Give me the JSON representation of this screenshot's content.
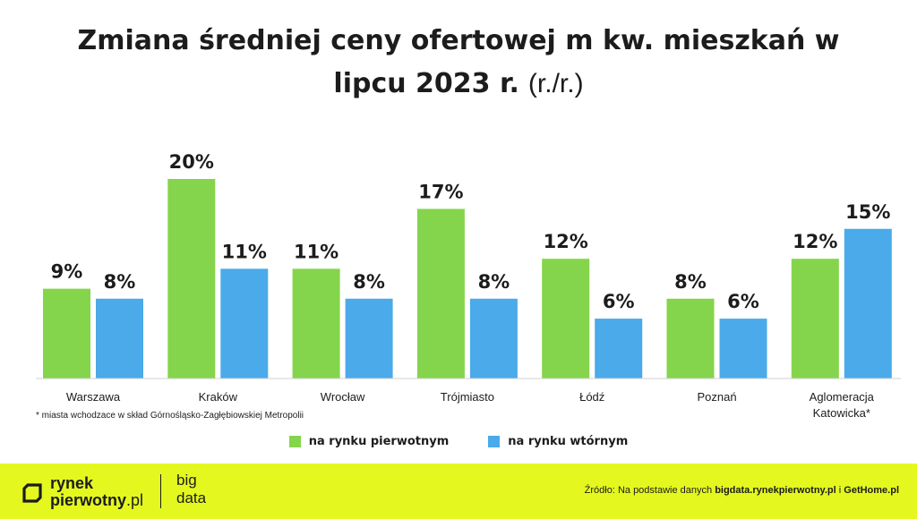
{
  "chart_data": {
    "type": "bar",
    "title_line1": "Zmiana średniej ceny ofertowej m kw. mieszkań w",
    "title_line2": "lipcu 2023 r.",
    "title_suffix": "(r./r.)",
    "categories": [
      [
        "Warszawa"
      ],
      [
        "Kraków"
      ],
      [
        "Wrocław"
      ],
      [
        "Trójmiasto"
      ],
      [
        "Łódź"
      ],
      [
        "Poznań"
      ],
      [
        "Aglomeracja",
        "Katowicka*"
      ]
    ],
    "series": [
      {
        "name": "na rynku pierwotnym",
        "color": "#84d54b",
        "values": [
          9,
          20,
          11,
          17,
          12,
          8,
          12
        ],
        "labels": [
          "9%",
          "20%",
          "11%",
          "17%",
          "12%",
          "8%",
          "12%"
        ]
      },
      {
        "name": "na rynku wtórnym",
        "color": "#4aaaea",
        "values": [
          8,
          11,
          8,
          8,
          6,
          6,
          15
        ],
        "labels": [
          "8%",
          "11%",
          "8%",
          "8%",
          "6%",
          "6%",
          "15%"
        ]
      }
    ],
    "ylim": [
      0,
      20
    ],
    "grid": false,
    "legend": "bottom-center"
  },
  "footnote": "* miasta wchodzace w skład Górnośląsko-Zagłębiowskiej Metropolii",
  "footer": {
    "brand_line1": "rynek",
    "brand_line2_bold": "pierwotny",
    "brand_line2_domain": ".pl",
    "bigdata_line1": "big",
    "bigdata_line2": "data",
    "source_prefix": "Źródło: Na podstawie danych",
    "source_link1": "bigdata.rynekpierwotny.pl",
    "source_sep": "i",
    "source_link2": "GetHome.pl",
    "background": "#e4f81f"
  }
}
